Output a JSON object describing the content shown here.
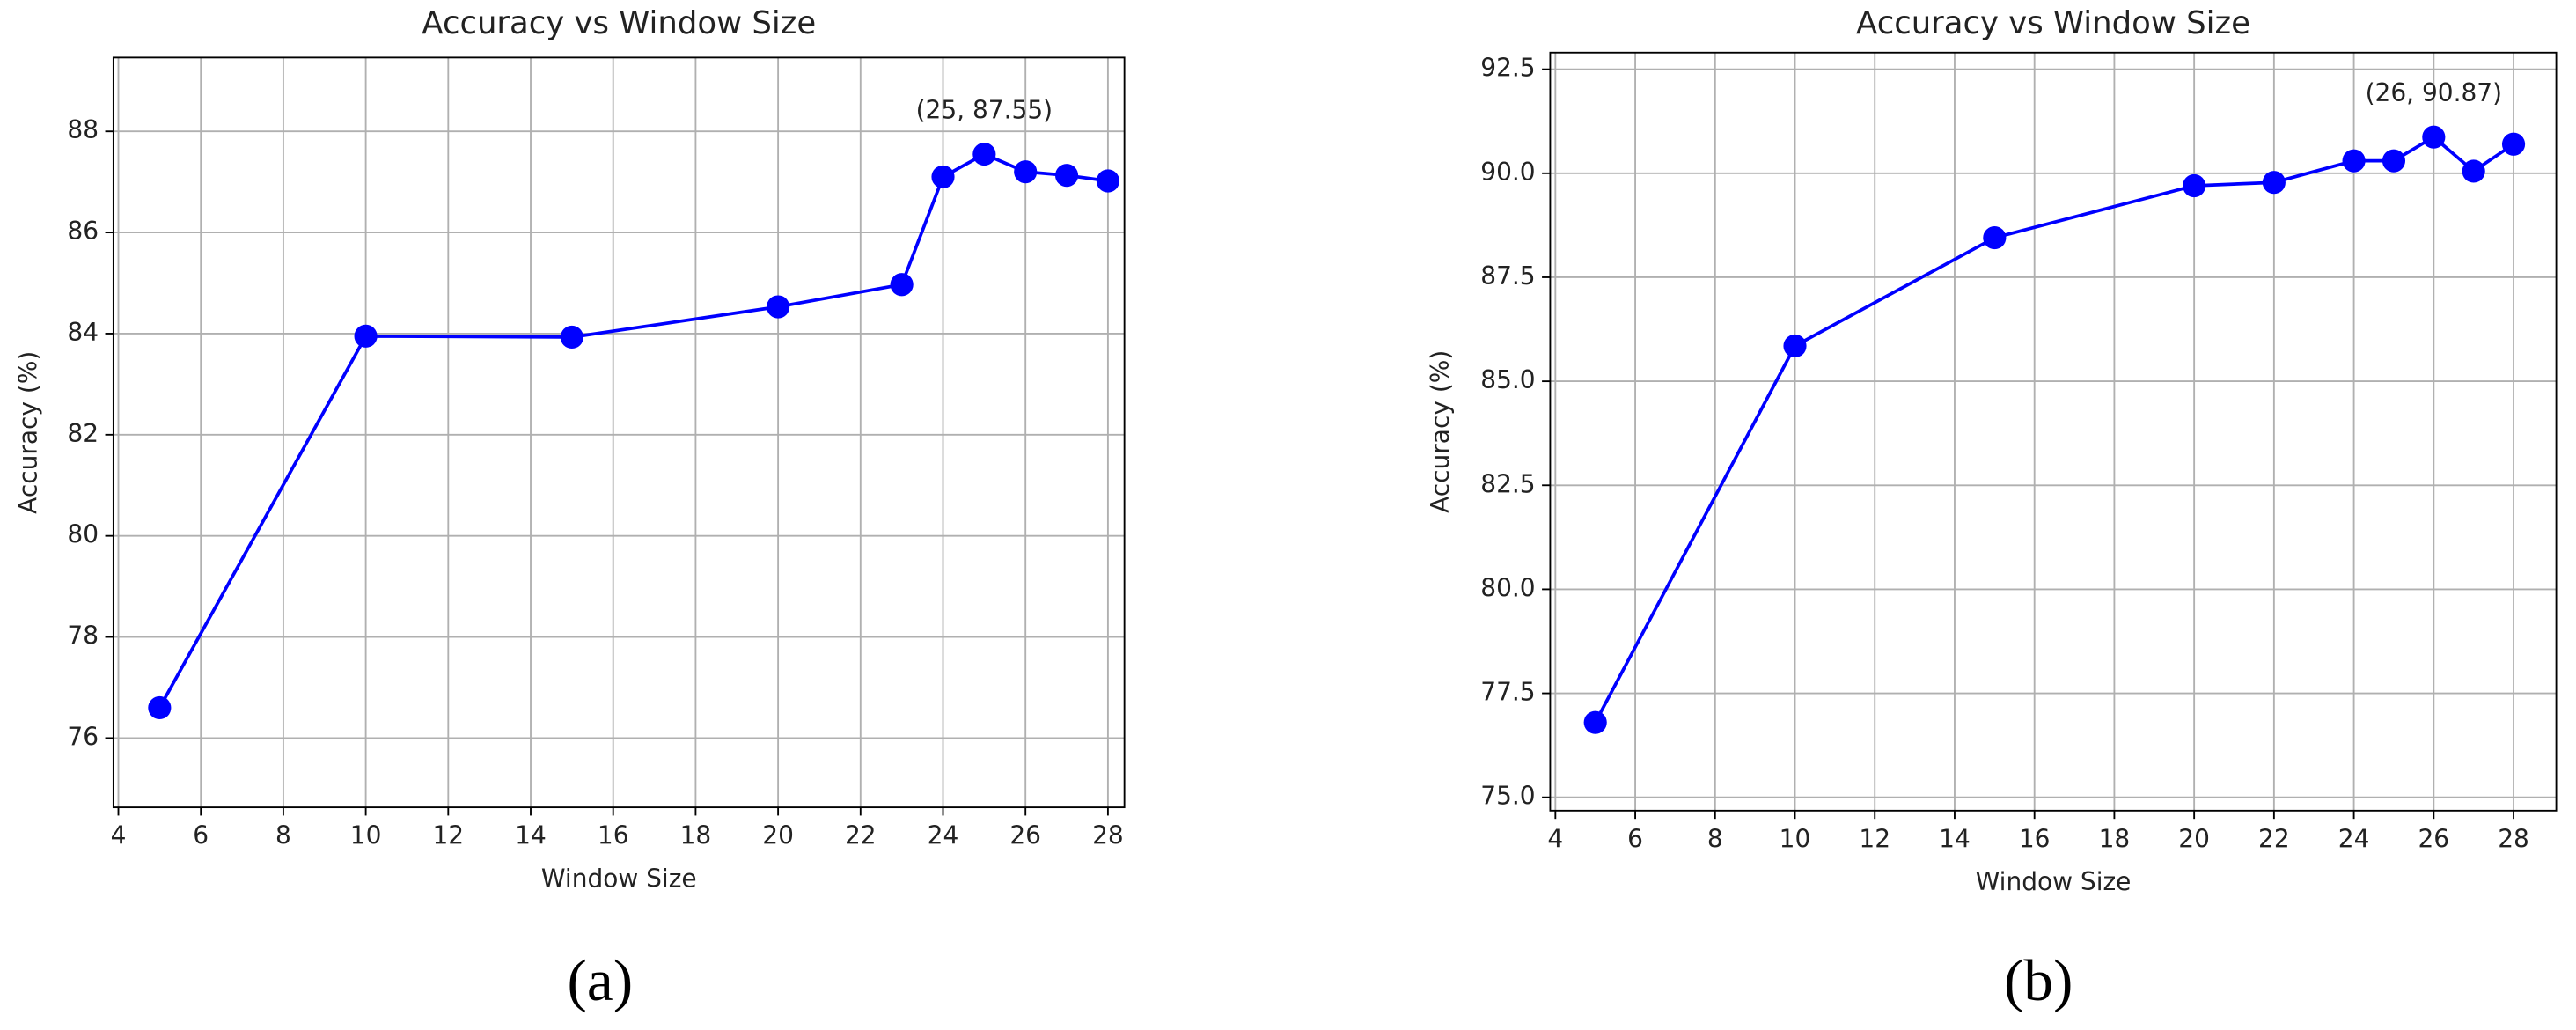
{
  "chart_data": [
    {
      "type": "line",
      "title": "Accuracy vs Window Size",
      "xlabel": "Window Size",
      "ylabel": "Accuracy (%)",
      "caption": "(a)",
      "x": [
        5,
        10,
        15,
        20,
        23,
        24,
        25,
        26,
        27,
        28
      ],
      "series": [
        {
          "color": "#0000ff",
          "values": [
            76.6,
            83.95,
            83.93,
            84.53,
            84.97,
            87.1,
            87.55,
            87.2,
            87.13,
            87.02
          ]
        }
      ],
      "annotation": "(25, 87.55)",
      "xlim": [
        3.88,
        28.4
      ],
      "ylim": [
        74.63,
        89.46
      ],
      "xticks": [
        4,
        6,
        8,
        10,
        12,
        14,
        16,
        18,
        20,
        22,
        24,
        26,
        28
      ],
      "yticks": [
        76,
        78,
        80,
        82,
        84,
        86,
        88
      ],
      "grid": true
    },
    {
      "type": "line",
      "title": "Accuracy vs Window Size",
      "xlabel": "Window Size",
      "ylabel": "Accuracy (%)",
      "caption": "(b)",
      "x": [
        5,
        10,
        15,
        20,
        22,
        24,
        25,
        26,
        27,
        28
      ],
      "series": [
        {
          "color": "#0000ff",
          "values": [
            76.8,
            85.85,
            88.45,
            89.7,
            89.78,
            90.3,
            90.3,
            90.87,
            90.05,
            90.7
          ]
        }
      ],
      "annotation": "(26, 90.87)",
      "xlim": [
        3.87,
        29.07
      ],
      "ylim": [
        74.68,
        92.9
      ],
      "xticks": [
        4,
        6,
        8,
        10,
        12,
        14,
        16,
        18,
        20,
        22,
        24,
        26,
        28
      ],
      "yticks": [
        {
          "value": 75,
          "label": "75.0"
        },
        {
          "value": 77.5,
          "label": "77.5"
        },
        {
          "value": 80,
          "label": "80.0"
        },
        {
          "value": 82.5,
          "label": "82.5"
        },
        {
          "value": 85,
          "label": "85.0"
        },
        {
          "value": 87.5,
          "label": "87.5"
        },
        {
          "value": 90,
          "label": "90.0"
        },
        {
          "value": 92.5,
          "label": "92.5"
        }
      ],
      "grid": true
    }
  ]
}
